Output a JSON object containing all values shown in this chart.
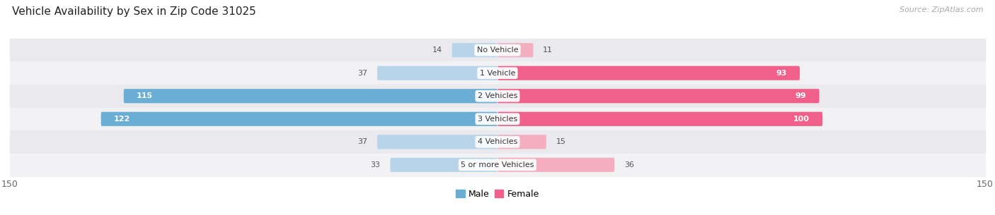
{
  "title": "Vehicle Availability by Sex in Zip Code 31025",
  "source": "Source: ZipAtlas.com",
  "categories": [
    "No Vehicle",
    "1 Vehicle",
    "2 Vehicles",
    "3 Vehicles",
    "4 Vehicles",
    "5 or more Vehicles"
  ],
  "male_values": [
    14,
    37,
    115,
    122,
    37,
    33
  ],
  "female_values": [
    11,
    93,
    99,
    100,
    15,
    36
  ],
  "male_color_strong": "#6aaed6",
  "male_color_light": "#b8d4ea",
  "female_color_strong": "#f0608a",
  "female_color_light": "#f5aec0",
  "strong_threshold": 50,
  "row_colors": [
    "#eaeaee",
    "#f2f2f5"
  ],
  "max_val": 150,
  "inside_threshold": 40,
  "bar_height": 0.62,
  "figsize": [
    14.06,
    3.05
  ],
  "dpi": 100,
  "bg_color": "#ffffff"
}
